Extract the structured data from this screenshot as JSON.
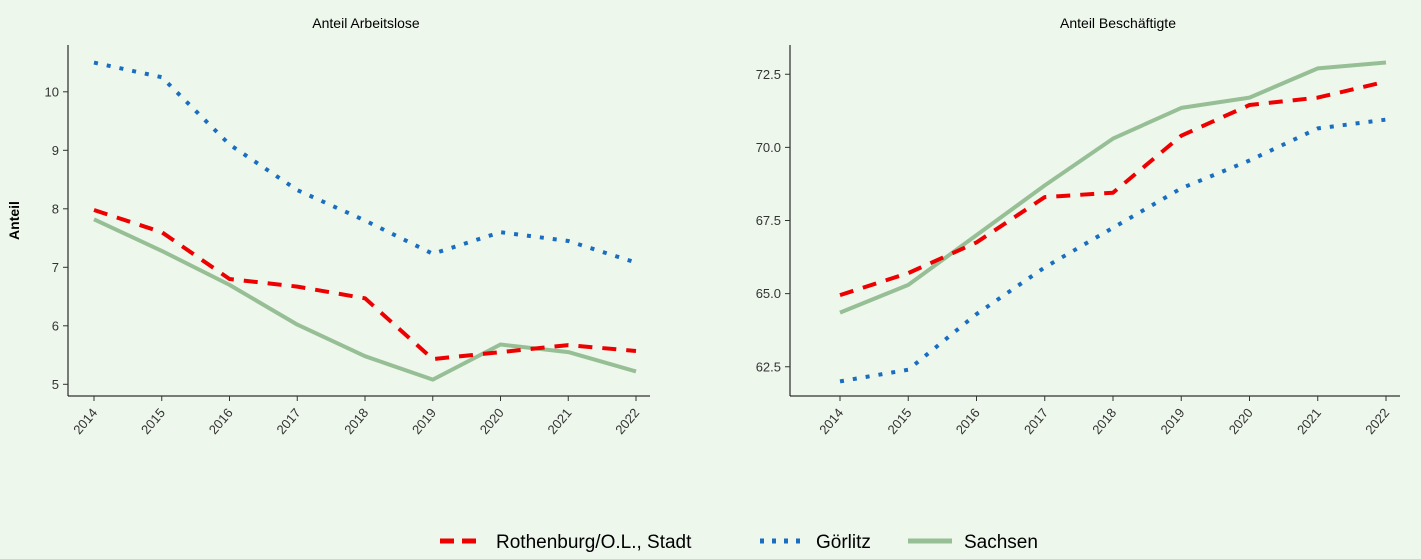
{
  "chart_data": [
    {
      "type": "line",
      "title": "Anteil Arbeitslose",
      "ylabel": "Anteil",
      "xlabel": "",
      "x": [
        "2014",
        "2015",
        "2016",
        "2017",
        "2018",
        "2019",
        "2020",
        "2021",
        "2022"
      ],
      "ylim": [
        4.8,
        10.8
      ],
      "yticks": [
        "5",
        "6",
        "7",
        "8",
        "9",
        "10"
      ],
      "ytick_values": [
        5,
        6,
        7,
        8,
        9,
        10
      ],
      "grid": false,
      "series": [
        {
          "name": "Rothenburg/O.L., Stadt",
          "values": [
            7.98,
            7.6,
            6.8,
            6.67,
            6.47,
            5.43,
            5.55,
            5.67,
            5.57
          ]
        },
        {
          "name": "Görlitz",
          "values": [
            10.5,
            10.25,
            9.1,
            8.32,
            7.8,
            7.23,
            7.6,
            7.45,
            7.08
          ]
        },
        {
          "name": "Sachsen",
          "values": [
            7.82,
            7.28,
            6.7,
            6.02,
            5.48,
            5.08,
            5.68,
            5.55,
            5.22
          ]
        }
      ]
    },
    {
      "type": "line",
      "title": "Anteil Beschäftigte",
      "ylabel": "",
      "xlabel": "",
      "x": [
        "2014",
        "2015",
        "2016",
        "2017",
        "2018",
        "2019",
        "2020",
        "2021",
        "2022"
      ],
      "ylim": [
        61.5,
        73.5
      ],
      "yticks": [
        "62.5",
        "65.0",
        "67.5",
        "70.0",
        "72.5"
      ],
      "ytick_values": [
        62.5,
        65.0,
        67.5,
        70.0,
        72.5
      ],
      "grid": false,
      "series": [
        {
          "name": "Rothenburg/O.L., Stadt",
          "values": [
            64.95,
            65.7,
            66.75,
            68.3,
            68.45,
            70.4,
            71.45,
            71.7,
            72.25
          ]
        },
        {
          "name": "Görlitz",
          "values": [
            62.0,
            62.4,
            64.3,
            65.9,
            67.25,
            68.6,
            69.55,
            70.65,
            70.95
          ]
        },
        {
          "name": "Sachsen",
          "values": [
            64.35,
            65.3,
            67.0,
            68.7,
            70.3,
            71.35,
            71.7,
            72.7,
            72.9
          ]
        }
      ]
    }
  ],
  "legend": {
    "placement": "bottom",
    "items": [
      {
        "label": "Rothenburg/O.L., Stadt",
        "color": "#ee0000",
        "style": "dashed"
      },
      {
        "label": "Görlitz",
        "color": "#1a6ec2",
        "style": "dotted"
      },
      {
        "label": "Sachsen",
        "color": "#97bf96",
        "style": "solid"
      }
    ]
  },
  "colors": {
    "background": "#eef7ec",
    "rothenburg": "#ee0000",
    "goerlitz": "#1a6ec2",
    "sachsen": "#97bf96"
  }
}
